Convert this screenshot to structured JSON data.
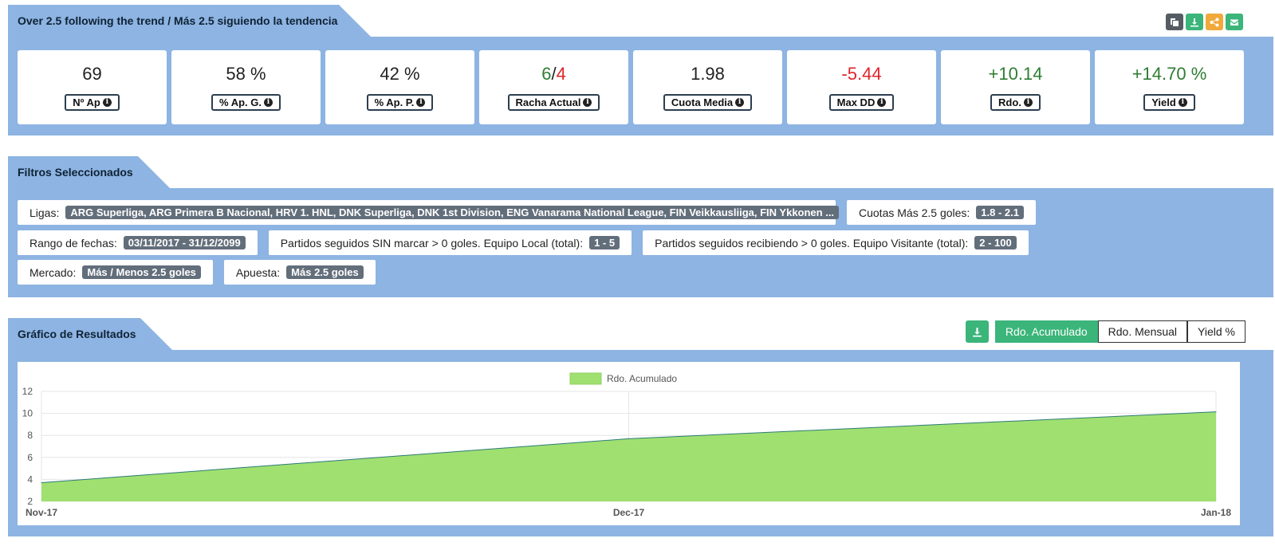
{
  "header": {
    "title": "Over 2.5 following the trend / Más 2.5 siguiendo la tendencia",
    "actions": [
      {
        "name": "copy-button",
        "icon": "copy-icon",
        "color": "#555c63"
      },
      {
        "name": "download-button",
        "icon": "download-icon",
        "color": "#3bb57a"
      },
      {
        "name": "share-button",
        "icon": "share-icon",
        "color": "#f0a93b"
      },
      {
        "name": "email-button",
        "icon": "envelope-icon",
        "color": "#3bb57a"
      }
    ]
  },
  "stats": [
    {
      "value": "69",
      "label": "Nº Ap",
      "color": "#222222"
    },
    {
      "value": "58 %",
      "label": "% Ap. G.",
      "color": "#222222"
    },
    {
      "value": "42 %",
      "label": "% Ap. P.",
      "color": "#222222"
    },
    {
      "value_won": "6",
      "value_sep": "/",
      "value_lost": "4",
      "label": "Racha Actual"
    },
    {
      "value": "1.98",
      "label": "Cuota Media",
      "color": "#222222"
    },
    {
      "value": "-5.44",
      "label": "Max DD",
      "color": "#e0242b"
    },
    {
      "value": "+10.14",
      "label": "Rdo.",
      "color": "#2e7d32"
    },
    {
      "value": "+14.70 %",
      "label": "Yield",
      "color": "#2e7d32"
    }
  ],
  "filters": {
    "title": "Filtros Seleccionados",
    "ligas_label": "Ligas:",
    "ligas_value": "ARG Superliga, ARG Primera B Nacional, HRV 1. HNL, DNK Superliga, DNK 1st Division, ENG Vanarama National League, FIN Veikkausliiga, FIN Ykkonen ...",
    "cuotas_label": "Cuotas Más 2.5 goles:",
    "cuotas_value": "1.8 - 2.1",
    "fechas_label": "Rango de fechas:",
    "fechas_value": "03/11/2017 - 31/12/2099",
    "local_label": "Partidos seguidos SIN marcar > 0 goles. Equipo Local (total):",
    "local_value": "1 - 5",
    "visitante_label": "Partidos seguidos recibiendo > 0 goles. Equipo Visitante (total):",
    "visitante_value": "2 - 100",
    "mercado_label": "Mercado:",
    "mercado_value": "Más / Menos 2.5 goles",
    "apuesta_label": "Apuesta:",
    "apuesta_value": "Más 2.5 goles"
  },
  "results": {
    "title": "Gráfico de Resultados",
    "tabs": [
      "Rdo. Acumulado",
      "Rdo. Mensual",
      "Yield %"
    ],
    "active_tab": "Rdo. Acumulado"
  },
  "chart_data": {
    "type": "area",
    "x": [
      "Nov-17",
      "Dec-17",
      "Jan-18"
    ],
    "series": [
      {
        "name": "Rdo. Acumulado",
        "values": [
          3.7,
          7.7,
          10.14
        ],
        "color": "#a0e070",
        "line_color": "#2b7a78"
      }
    ],
    "yticks": [
      2,
      4,
      6,
      8,
      10,
      12
    ],
    "ylim": [
      2,
      12
    ],
    "legend": "top-center",
    "grid": true
  }
}
